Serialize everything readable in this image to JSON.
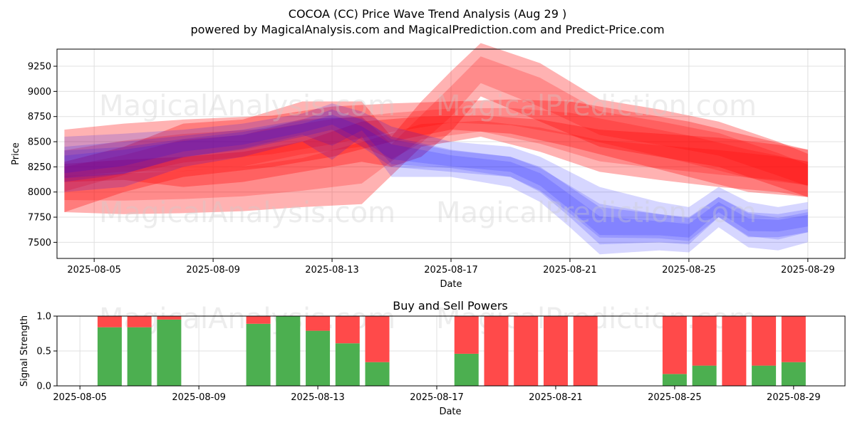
{
  "header": {
    "title": "COCOA (CC) Price Wave Trend Analysis (Aug 29 )",
    "subtitle": "powered by MagicalAnalysis.com and MagicalPrediction.com and Predict-Price.com"
  },
  "watermarks": [
    "MagicalAnalysis.com",
    "MagicalPrediction.com"
  ],
  "colors": {
    "red_band": "#ff0000",
    "blue_band": "#0000ff",
    "buy": "#4caf50",
    "sell": "#ff4a4a",
    "grid": "#e0e0e0"
  },
  "chart_data": [
    {
      "type": "area",
      "title": "",
      "xlabel": "Date",
      "ylabel": "Price",
      "x_ticks": [
        "2025-08-05",
        "2025-08-09",
        "2025-08-13",
        "2025-08-17",
        "2025-08-21",
        "2025-08-25",
        "2025-08-29"
      ],
      "y_ticks": [
        7500,
        7750,
        8000,
        8250,
        8500,
        8750,
        9000,
        9250
      ],
      "xlim": [
        "2025-08-03T18:00",
        "2025-08-30T06:00"
      ],
      "ylim": [
        7340,
        9420
      ],
      "grid": true,
      "series": [
        {
          "color": "red",
          "x": [
            "2025-08-04",
            "2025-08-06",
            "2025-08-08",
            "2025-08-11",
            "2025-08-13",
            "2025-08-15",
            "2025-08-17",
            "2025-08-19",
            "2025-08-21",
            "2025-08-23",
            "2025-08-25",
            "2025-08-27",
            "2025-08-29"
          ],
          "upper": [
            8620,
            8680,
            8720,
            8760,
            8850,
            8880,
            8900,
            8920,
            8900,
            8800,
            8700,
            8560,
            8420
          ],
          "lower": [
            7800,
            8000,
            8150,
            8250,
            8350,
            8500,
            8620,
            8580,
            8450,
            8300,
            8150,
            8000,
            7950
          ]
        },
        {
          "color": "red",
          "x": [
            "2025-08-04",
            "2025-08-06",
            "2025-08-08",
            "2025-08-10",
            "2025-08-12",
            "2025-08-14",
            "2025-08-16",
            "2025-08-18",
            "2025-08-20",
            "2025-08-22",
            "2025-08-24",
            "2025-08-26",
            "2025-08-28",
            "2025-08-29"
          ],
          "upper": [
            8280,
            8320,
            8350,
            8400,
            8500,
            8700,
            8750,
            8760,
            8720,
            8620,
            8580,
            8540,
            8470,
            8420
          ],
          "lower": [
            7800,
            7780,
            7790,
            7810,
            7850,
            7880,
            8450,
            8550,
            8400,
            8200,
            8120,
            8050,
            8000,
            7950
          ]
        },
        {
          "color": "red",
          "x": [
            "2025-08-04",
            "2025-08-06",
            "2025-08-08",
            "2025-08-10",
            "2025-08-12",
            "2025-08-14",
            "2025-08-15",
            "2025-08-16",
            "2025-08-17",
            "2025-08-18",
            "2025-08-20",
            "2025-08-22",
            "2025-08-24",
            "2025-08-26",
            "2025-08-28",
            "2025-08-29"
          ],
          "upper": [
            8300,
            8450,
            8680,
            8720,
            8900,
            8900,
            8550,
            8900,
            9200,
            9480,
            9280,
            8920,
            8820,
            8700,
            8500,
            8380
          ],
          "lower": [
            8100,
            8120,
            8050,
            8100,
            8200,
            8300,
            8250,
            8350,
            8600,
            8950,
            8700,
            8450,
            8350,
            8250,
            8050,
            7950
          ]
        },
        {
          "color": "blue",
          "x": [
            "2025-08-04",
            "2025-08-06",
            "2025-08-08",
            "2025-08-10",
            "2025-08-12",
            "2025-08-13",
            "2025-08-14",
            "2025-08-15",
            "2025-08-17",
            "2025-08-19",
            "2025-08-20",
            "2025-08-21",
            "2025-08-22",
            "2025-08-24",
            "2025-08-25",
            "2025-08-26",
            "2025-08-27",
            "2025-08-28",
            "2025-08-29"
          ],
          "upper": [
            8550,
            8580,
            8620,
            8680,
            8780,
            8880,
            8800,
            8650,
            8500,
            8450,
            8350,
            8200,
            8050,
            7900,
            7850,
            8050,
            7900,
            7850,
            7900
          ],
          "lower": [
            8000,
            8050,
            8250,
            8350,
            8500,
            8320,
            8550,
            8150,
            8150,
            8050,
            7900,
            7650,
            7380,
            7420,
            7400,
            7650,
            7450,
            7420,
            7500
          ]
        },
        {
          "color": "blue",
          "x": [
            "2025-08-04",
            "2025-08-06",
            "2025-08-08",
            "2025-08-10",
            "2025-08-12",
            "2025-08-13",
            "2025-08-14",
            "2025-08-15",
            "2025-08-17",
            "2025-08-19",
            "2025-08-20",
            "2025-08-21",
            "2025-08-22",
            "2025-08-24",
            "2025-08-25",
            "2025-08-26",
            "2025-08-27",
            "2025-08-28",
            "2025-08-29"
          ],
          "upper": [
            8450,
            8500,
            8560,
            8620,
            8720,
            8820,
            8720,
            8550,
            8420,
            8350,
            8250,
            8050,
            7850,
            7780,
            7750,
            7950,
            7800,
            7780,
            7830
          ],
          "lower": [
            8100,
            8180,
            8350,
            8420,
            8550,
            8620,
            8450,
            8250,
            8200,
            8150,
            8000,
            7750,
            7480,
            7500,
            7480,
            7750,
            7550,
            7550,
            7600
          ]
        }
      ]
    },
    {
      "type": "bar",
      "title": "Buy and Sell Powers",
      "xlabel": "Date",
      "ylabel": "Signal Strength",
      "x_ticks": [
        "2025-08-05",
        "2025-08-09",
        "2025-08-13",
        "2025-08-17",
        "2025-08-21",
        "2025-08-25",
        "2025-08-29"
      ],
      "y_ticks": [
        0.0,
        0.5,
        1.0
      ],
      "y_tick_labels": [
        "0.0",
        "0.5",
        "1.0"
      ],
      "ylim": [
        0,
        1
      ],
      "grid": true,
      "series": [
        {
          "name": "buy",
          "dates": [
            "2025-08-06",
            "2025-08-07",
            "2025-08-08",
            "2025-08-11",
            "2025-08-12",
            "2025-08-13",
            "2025-08-14",
            "2025-08-15",
            "2025-08-18",
            "2025-08-19",
            "2025-08-20",
            "2025-08-21",
            "2025-08-22",
            "2025-08-25",
            "2025-08-26",
            "2025-08-27",
            "2025-08-28",
            "2025-08-29"
          ],
          "values": [
            0.84,
            0.84,
            0.95,
            0.89,
            1.0,
            0.79,
            0.61,
            0.34,
            0.46,
            0.0,
            0.0,
            0.0,
            0.0,
            0.17,
            0.29,
            0.0,
            0.29,
            0.34
          ]
        },
        {
          "name": "sell",
          "dates": [
            "2025-08-06",
            "2025-08-07",
            "2025-08-08",
            "2025-08-11",
            "2025-08-12",
            "2025-08-13",
            "2025-08-14",
            "2025-08-15",
            "2025-08-18",
            "2025-08-19",
            "2025-08-20",
            "2025-08-21",
            "2025-08-22",
            "2025-08-25",
            "2025-08-26",
            "2025-08-27",
            "2025-08-28",
            "2025-08-29"
          ],
          "values": [
            0.16,
            0.16,
            0.05,
            0.11,
            0.0,
            0.21,
            0.39,
            0.66,
            0.54,
            1.0,
            1.0,
            1.0,
            1.0,
            0.83,
            0.71,
            1.0,
            0.71,
            0.66
          ]
        }
      ]
    }
  ]
}
